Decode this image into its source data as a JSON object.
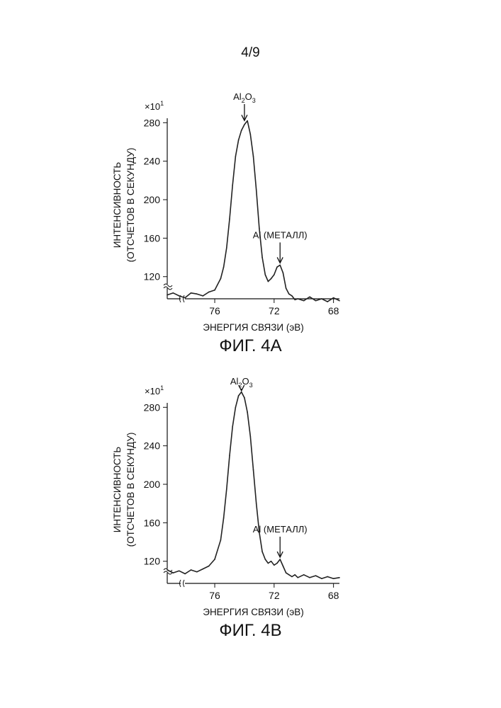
{
  "page_number": "4/9",
  "chart_data": [
    {
      "type": "line",
      "figure": "ФИГ. 4А",
      "xlabel": "ЭНЕРГИЯ СВЯЗИ (эВ)",
      "ylabel_line1": "ИНТЕНСИВНОСТЬ",
      "ylabel_line2": "(ОТСЧЕТОВ В СЕКУНДУ)",
      "y_multiplier": "×10",
      "y_multiplier_exp": "1",
      "xlim": [
        79.2,
        67.6
      ],
      "ylim": [
        97,
        292
      ],
      "axis_break": true,
      "x_ticks": [
        76,
        72,
        68
      ],
      "x_tick_labels": [
        "76",
        "72",
        "68"
      ],
      "y_ticks": [
        120,
        160,
        200,
        240,
        280
      ],
      "y_tick_labels": [
        "120",
        "160",
        "200",
        "240",
        "280"
      ],
      "annotations": [
        {
          "id": "al2o3",
          "base": "Al",
          "sub1": "2",
          "mid": "O",
          "sub2": "3",
          "x": 74.0,
          "y": 280
        },
        {
          "id": "al_metal",
          "text": "Al (МЕТАЛЛ)",
          "x": 71.6,
          "y": 132
        }
      ],
      "series": [
        {
          "x": [
            79.2,
            78.8,
            78.4,
            78.0,
            77.6,
            77.2,
            76.8,
            76.4,
            76.0,
            75.6,
            75.4,
            75.2,
            75.0,
            74.8,
            74.6,
            74.4,
            74.2,
            74.0,
            73.8,
            73.6,
            73.4,
            73.2,
            73.0,
            72.8,
            72.6,
            72.4,
            72.2,
            72.0,
            71.8,
            71.6,
            71.4,
            71.2,
            71.0,
            70.8,
            70.6,
            70.4,
            70.0,
            69.6,
            69.2,
            68.8,
            68.4,
            68.0,
            67.6
          ],
          "y": [
            101,
            103,
            100,
            98,
            103,
            102,
            100,
            104,
            106,
            118,
            130,
            150,
            180,
            215,
            245,
            262,
            272,
            278,
            282,
            268,
            245,
            210,
            170,
            140,
            122,
            115,
            118,
            122,
            130,
            132,
            124,
            108,
            102,
            100,
            96,
            97,
            95,
            99,
            95,
            97,
            94,
            98,
            95
          ]
        }
      ]
    },
    {
      "type": "line",
      "figure": "ФИГ. 4В",
      "xlabel": "ЭНЕРГИЯ СВЯЗИ (эВ)",
      "ylabel_line1": "ИНТЕНСИВНОСТЬ",
      "ylabel_line2": "(ОТСЧЕТОВ В СЕКУНДУ)",
      "y_multiplier": "×10",
      "y_multiplier_exp": "1",
      "xlim": [
        79.2,
        67.6
      ],
      "ylim": [
        97,
        292
      ],
      "axis_break": true,
      "x_ticks": [
        76,
        72,
        68
      ],
      "x_tick_labels": [
        "76",
        "72",
        "68"
      ],
      "y_ticks": [
        120,
        160,
        200,
        240,
        280
      ],
      "y_tick_labels": [
        "120",
        "160",
        "200",
        "240",
        "280"
      ],
      "annotations": [
        {
          "id": "al2o3",
          "base": "Al",
          "sub1": "2",
          "mid": "O",
          "sub2": "3",
          "x": 74.2,
          "y": 295
        },
        {
          "id": "al_metal",
          "text": "Al (МЕТАЛЛ)",
          "x": 71.6,
          "y": 122
        }
      ],
      "series": [
        {
          "x": [
            79.2,
            78.8,
            78.4,
            78.0,
            77.6,
            77.2,
            76.8,
            76.4,
            76.0,
            75.6,
            75.4,
            75.2,
            75.0,
            74.8,
            74.6,
            74.4,
            74.2,
            74.0,
            73.8,
            73.6,
            73.4,
            73.2,
            73.0,
            72.8,
            72.6,
            72.4,
            72.2,
            72.0,
            71.8,
            71.6,
            71.4,
            71.2,
            71.0,
            70.8,
            70.6,
            70.4,
            70.0,
            69.6,
            69.2,
            68.8,
            68.4,
            68.0,
            67.6
          ],
          "y": [
            111,
            108,
            110,
            107,
            111,
            109,
            112,
            115,
            122,
            142,
            165,
            195,
            230,
            260,
            280,
            292,
            296,
            290,
            275,
            250,
            215,
            180,
            150,
            130,
            122,
            118,
            120,
            116,
            118,
            122,
            115,
            108,
            106,
            104,
            106,
            103,
            106,
            103,
            105,
            102,
            104,
            102,
            103
          ]
        }
      ]
    }
  ]
}
